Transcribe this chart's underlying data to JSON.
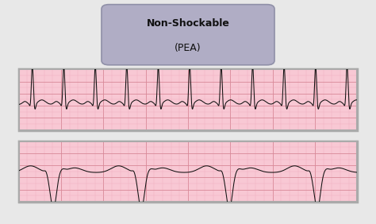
{
  "title_line1": "Non-Shockable",
  "title_line2": "(PEA)",
  "title_box_color": "#b0adc5",
  "title_box_edge": "#9090a8",
  "bg_color": "#e8e8e8",
  "ecg_bg": "#f8c8d4",
  "ecg_grid_minor": "#eeaabb",
  "ecg_grid_major": "#d88898",
  "ecg_line_color": "#111111",
  "box_edge_color": "#aaaaaa",
  "fig_w": 4.74,
  "fig_h": 2.82
}
